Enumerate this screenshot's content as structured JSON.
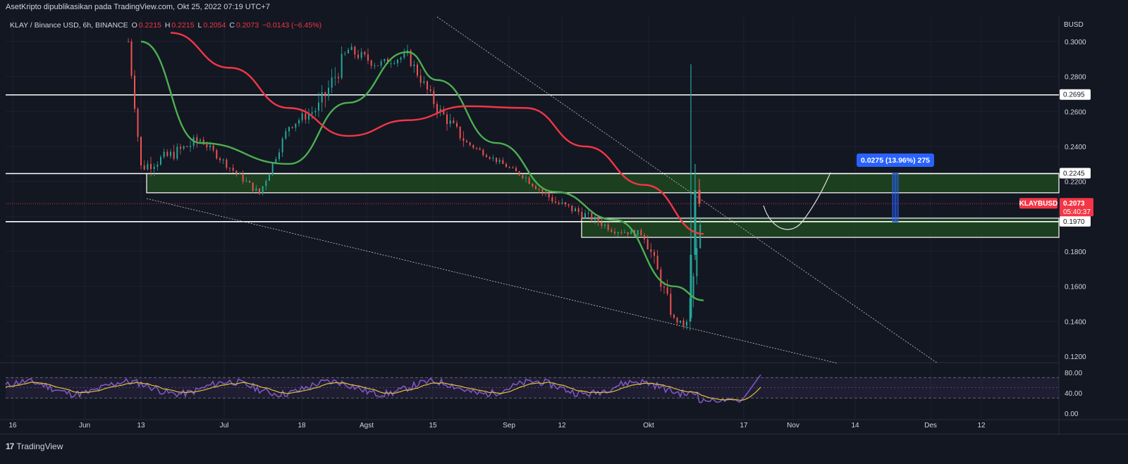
{
  "header": {
    "published": "AsetKripto dipublikasikan pada TradingView.com, Okt 25, 2022 07:19 UTC+7"
  },
  "legend": {
    "symbol": "KLAY / Binance USD, 6h, BINANCE",
    "o_label": "O",
    "o": "0.2215",
    "h_label": "H",
    "h": "0.2215",
    "l_label": "L",
    "l": "0.2054",
    "c_label": "C",
    "c": "0.2073",
    "change": "−0.0143 (−6.45%)"
  },
  "axis": {
    "currency": "BUSD",
    "price_ticks": [
      "0.3000",
      "0.2800",
      "0.2600",
      "0.2400",
      "0.2200",
      "0.2000",
      "0.1800",
      "0.1600",
      "0.1400",
      "0.1200"
    ],
    "rsi_ticks": [
      "80.00",
      "40.00",
      "0.00"
    ],
    "time_ticks": [
      "16",
      "Jun",
      "13",
      "Jul",
      "18",
      "Agst",
      "15",
      "Sep",
      "12",
      "Okt",
      "17",
      "Nov",
      "14",
      "Des",
      "12"
    ]
  },
  "price_labels": {
    "upper_level": "0.2695",
    "mid_level": "0.2245",
    "lower_level": "0.1970",
    "symbol_tag": "KLAYBUSD",
    "last_price": "0.2073",
    "countdown": "05:40:37"
  },
  "measure": {
    "label": "0.0275 (13.96%) 275"
  },
  "footer": {
    "brand": "TradingView"
  },
  "colors": {
    "background": "#131722",
    "ema_fast": "#4caf50",
    "ema_slow": "#f23645",
    "zone": "#1e4620",
    "rsi": "#7e57c2",
    "rsi_ma": "#e0c23a",
    "measure": "#2962ff"
  },
  "chart_data": {
    "type": "line",
    "title": "KLAY / Binance USD, 6h, BINANCE",
    "ylabel": "BUSD",
    "ylim": [
      0.12,
      0.305
    ],
    "y_axis_ticks": [
      0.3,
      0.28,
      0.26,
      0.24,
      0.22,
      0.2,
      0.18,
      0.16,
      0.14,
      0.12
    ],
    "x_axis_ticks": [
      "16",
      "Jun",
      "13",
      "Jul",
      "18",
      "Agst",
      "15",
      "Sep",
      "12",
      "Okt",
      "17",
      "Nov",
      "14",
      "Des",
      "12"
    ],
    "horizontal_levels": [
      0.2695,
      0.2245,
      0.2135,
      0.197,
      0.188
    ],
    "zones": [
      {
        "from": 0.2135,
        "to": 0.2245
      },
      {
        "from": 0.188,
        "to": 0.199
      }
    ],
    "last_price": 0.2073,
    "measure_range": {
      "from": 0.197,
      "to": 0.2245,
      "label": "0.0275 (13.96%) 275"
    },
    "series": [
      {
        "type": "candlestick",
        "x": [
          "Jun 10",
          "Jun 13",
          "Jun 20",
          "Jun 27",
          "Jul 4",
          "Jul 11",
          "Jul 18",
          "Jul 25",
          "Agst 1",
          "Agst 8",
          "Agst 15",
          "Agst 22",
          "Agst 29",
          "Sep 5",
          "Sep 12",
          "Sep 19",
          "Sep 26",
          "Okt 3",
          "Okt 10",
          "Okt 17",
          "Okt 20",
          "Okt 24"
        ],
        "close": [
          0.3,
          0.228,
          0.235,
          0.244,
          0.228,
          0.213,
          0.252,
          0.262,
          0.295,
          0.287,
          0.292,
          0.262,
          0.242,
          0.232,
          0.222,
          0.208,
          0.201,
          0.192,
          0.19,
          0.141,
          0.137,
          0.2073
        ],
        "low": [
          0.272,
          0.215,
          0.22,
          0.228,
          0.22,
          0.205,
          0.236,
          0.24,
          0.27,
          0.274,
          0.268,
          0.24,
          0.232,
          0.225,
          0.21,
          0.195,
          0.188,
          0.186,
          0.152,
          0.134,
          0.121,
          0.2
        ],
        "high": [
          0.305,
          0.255,
          0.26,
          0.25,
          0.242,
          0.232,
          0.268,
          0.3,
          0.305,
          0.3,
          0.305,
          0.278,
          0.248,
          0.24,
          0.235,
          0.226,
          0.212,
          0.205,
          0.198,
          0.152,
          0.18,
          0.287
        ]
      },
      {
        "type": "line",
        "x": [
          "Jun 13",
          "Jun 27",
          "Jul 18",
          "Agst 1",
          "Agst 15",
          "Agst 22",
          "Sep 5",
          "Sep 19",
          "Okt 3",
          "Okt 17",
          "Okt 24"
        ],
        "values": [
          0.3,
          0.242,
          0.23,
          0.265,
          0.294,
          0.278,
          0.242,
          0.214,
          0.198,
          0.16,
          0.152
        ]
      },
      {
        "type": "line",
        "x": [
          "Jun 20",
          "Jul 4",
          "Jul 18",
          "Agst 1",
          "Agst 15",
          "Agst 29",
          "Sep 12",
          "Sep 26",
          "Okt 10",
          "Okt 24"
        ],
        "values": [
          0.305,
          0.285,
          0.262,
          0.246,
          0.255,
          0.263,
          0.262,
          0.24,
          0.218,
          0.19
        ]
      }
    ],
    "rsi": {
      "ylim": [
        0,
        100
      ],
      "y_axis_ticks": [
        80,
        40,
        0
      ],
      "bands": [
        30,
        70
      ],
      "last": 77
    }
  }
}
